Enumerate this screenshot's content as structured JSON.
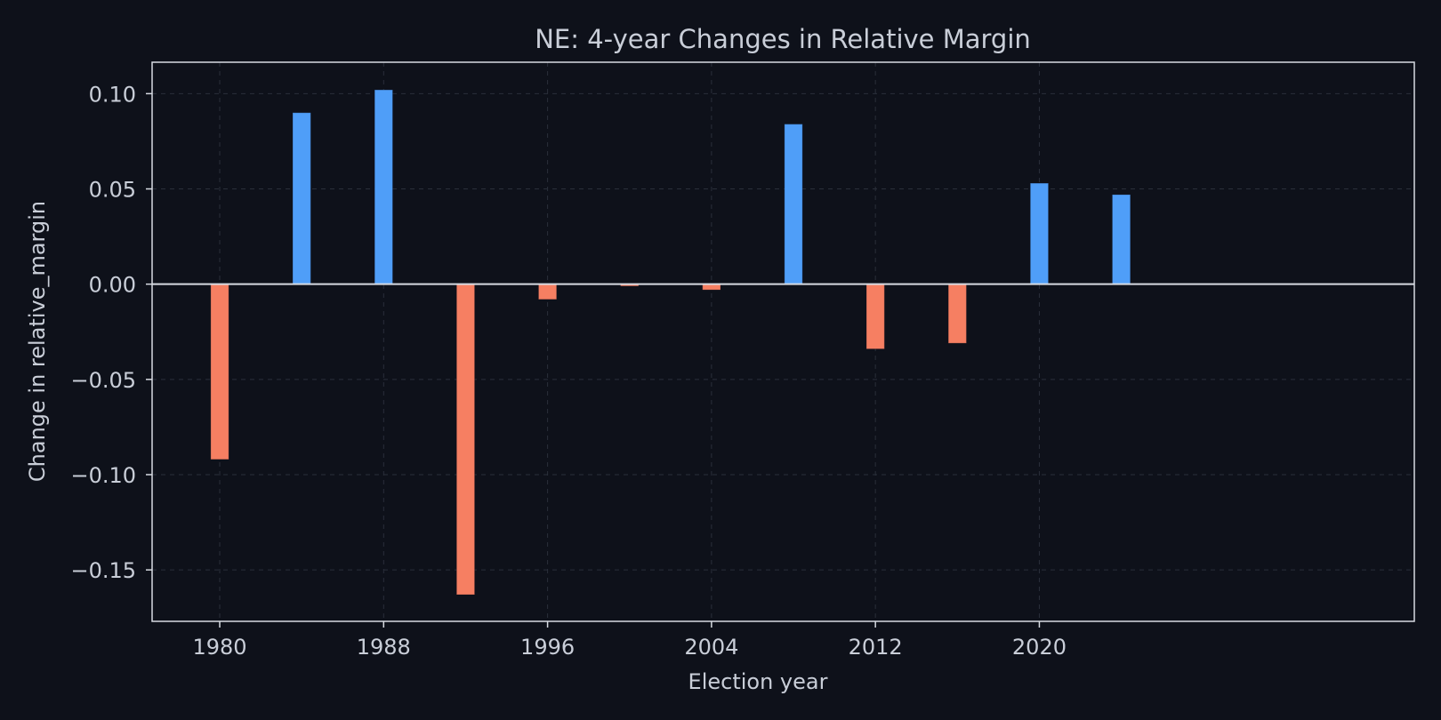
{
  "chart_data": {
    "type": "bar",
    "title": "NE: 4-year Changes in Relative Margin",
    "xlabel": "Election year",
    "ylabel": "Change in relative_margin",
    "x": [
      1980,
      1984,
      1988,
      1992,
      1996,
      2000,
      2004,
      2008,
      2012,
      2016,
      2020,
      2024
    ],
    "values": [
      -0.092,
      0.09,
      0.102,
      -0.163,
      -0.008,
      -0.001,
      -0.003,
      0.084,
      -0.034,
      -0.031,
      0.053,
      0.047
    ],
    "xticks": [
      1980,
      1988,
      1996,
      2004,
      2012,
      2020
    ],
    "xtick_labels": [
      "1980",
      "1988",
      "1996",
      "2004",
      "2012",
      "2020"
    ],
    "yticks": [
      0.1,
      0.05,
      0.0,
      -0.05,
      -0.1,
      -0.15
    ],
    "ytick_labels": [
      "0.10",
      "0.05",
      "0.00",
      "−0.05",
      "−0.10",
      "−0.15"
    ],
    "xlim": [
      1976.7,
      2038.3
    ],
    "ylim": [
      -0.177,
      0.1165
    ],
    "grid": true,
    "colors": {
      "background": "#0e111a",
      "positive": "#4f9ef8",
      "negative": "#f67f62",
      "text": "#c9ced8",
      "axis": "#d7dbe2",
      "grid": "#2a2f3a"
    }
  }
}
